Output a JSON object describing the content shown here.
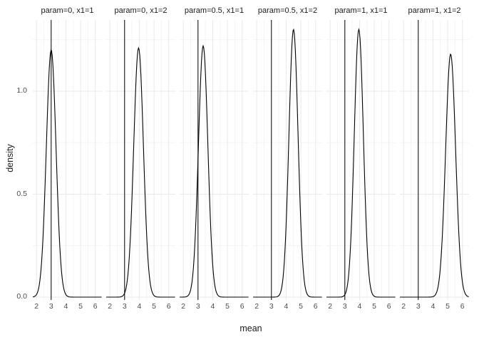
{
  "figure": {
    "xlabel": "mean",
    "ylabel": "density"
  },
  "chart_data": {
    "type": "line",
    "title": "",
    "xlabel": "mean",
    "ylabel": "density",
    "grid": true,
    "legend": false,
    "x_range": [
      1.75,
      6.45
    ],
    "y_range": [
      -0.015,
      1.35
    ],
    "x_ticks": [
      2,
      3,
      4,
      5,
      6
    ],
    "x_minor": [
      2.5,
      3.5,
      4.5,
      5.5
    ],
    "y_ticks": [
      {
        "value": 0.0,
        "label": "0.0"
      },
      {
        "value": 0.5,
        "label": "0.5"
      },
      {
        "value": 1.0,
        "label": "1.0"
      }
    ],
    "y_minor": [
      0.25,
      0.75,
      1.25
    ],
    "vline_x": 3,
    "facets": [
      {
        "title": "param=0, x1=1",
        "curve": {
          "mean": 3.0,
          "sd": 0.33,
          "peak": 1.2
        }
      },
      {
        "title": "param=0, x1=2",
        "curve": {
          "mean": 3.95,
          "sd": 0.33,
          "peak": 1.21
        }
      },
      {
        "title": "param=0.5, x1=1",
        "curve": {
          "mean": 3.35,
          "sd": 0.32,
          "peak": 1.22
        }
      },
      {
        "title": "param=0.5, x1=2",
        "curve": {
          "mean": 4.5,
          "sd": 0.31,
          "peak": 1.3
        }
      },
      {
        "title": "param=1, x1=1",
        "curve": {
          "mean": 3.95,
          "sd": 0.31,
          "peak": 1.3
        }
      },
      {
        "title": "param=1, x1=2",
        "curve": {
          "mean": 5.2,
          "sd": 0.34,
          "peak": 1.18
        }
      }
    ],
    "colors": {
      "line": "#000000",
      "vline": "#000000",
      "grid_major": "#e9e9e9",
      "grid_minor": "#f4f4f4",
      "axis_text": "#4d4d4d",
      "strip_text": "#1a1a1a"
    }
  }
}
